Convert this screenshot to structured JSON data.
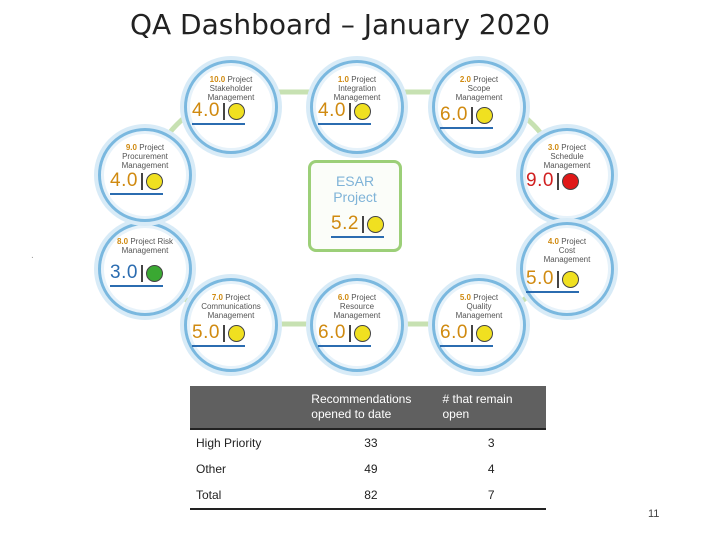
{
  "title": "QA Dashboard – January 2020",
  "center": {
    "name_line1": "ESAR",
    "name_line2": "Project",
    "score": "5.2",
    "status": "yellow"
  },
  "nodes": [
    {
      "id": "10",
      "num": "10.0",
      "label1": "Project",
      "label2": "Stakeholder",
      "label3": "Management",
      "score": "4.0",
      "status": "yellow"
    },
    {
      "id": "1",
      "num": "1.0",
      "label1": "Project",
      "label2": "Integration",
      "label3": "Management",
      "score": "4.0",
      "status": "yellow"
    },
    {
      "id": "2",
      "num": "2.0",
      "label1": "Project",
      "label2": "Scope",
      "label3": "Management",
      "score": "6.0",
      "status": "yellow"
    },
    {
      "id": "3",
      "num": "3.0",
      "label1": "Project",
      "label2": "Schedule",
      "label3": "Management",
      "score": "9.0",
      "status": "red"
    },
    {
      "id": "4",
      "num": "4.0",
      "label1": "Project",
      "label2": "Cost",
      "label3": "Management",
      "score": "5.0",
      "status": "yellow"
    },
    {
      "id": "5",
      "num": "5.0",
      "label1": "Project",
      "label2": "Quality",
      "label3": "Management",
      "score": "6.0",
      "status": "yellow"
    },
    {
      "id": "6",
      "num": "6.0",
      "label1": "Project",
      "label2": "Resource",
      "label3": "Management",
      "score": "6.0",
      "status": "yellow"
    },
    {
      "id": "7",
      "num": "7.0",
      "label1": "Project",
      "label2": "Communications",
      "label3": "Management",
      "score": "5.0",
      "status": "yellow"
    },
    {
      "id": "8",
      "num": "8.0",
      "label1": "Project Risk",
      "label2": "Management",
      "label3": "",
      "score": "3.0",
      "status": "green"
    },
    {
      "id": "9",
      "num": "9.0",
      "label1": "Project",
      "label2": "Procurement",
      "label3": "Management",
      "score": "4.0",
      "status": "yellow"
    }
  ],
  "table": {
    "headers": [
      "",
      "Recommendations opened to date",
      "# that remain open"
    ],
    "rows": [
      {
        "label": "High Priority",
        "opened": "33",
        "open": "3"
      },
      {
        "label": "Other",
        "opened": "49",
        "open": "4"
      },
      {
        "label": "Total",
        "opened": "82",
        "open": "7"
      }
    ]
  },
  "page_number": "11",
  "colors": {
    "yellow": "#f0e020",
    "green": "#3aa832",
    "red": "#e01818",
    "ring": "#9ccf78",
    "node_border": "#7ab8df"
  }
}
